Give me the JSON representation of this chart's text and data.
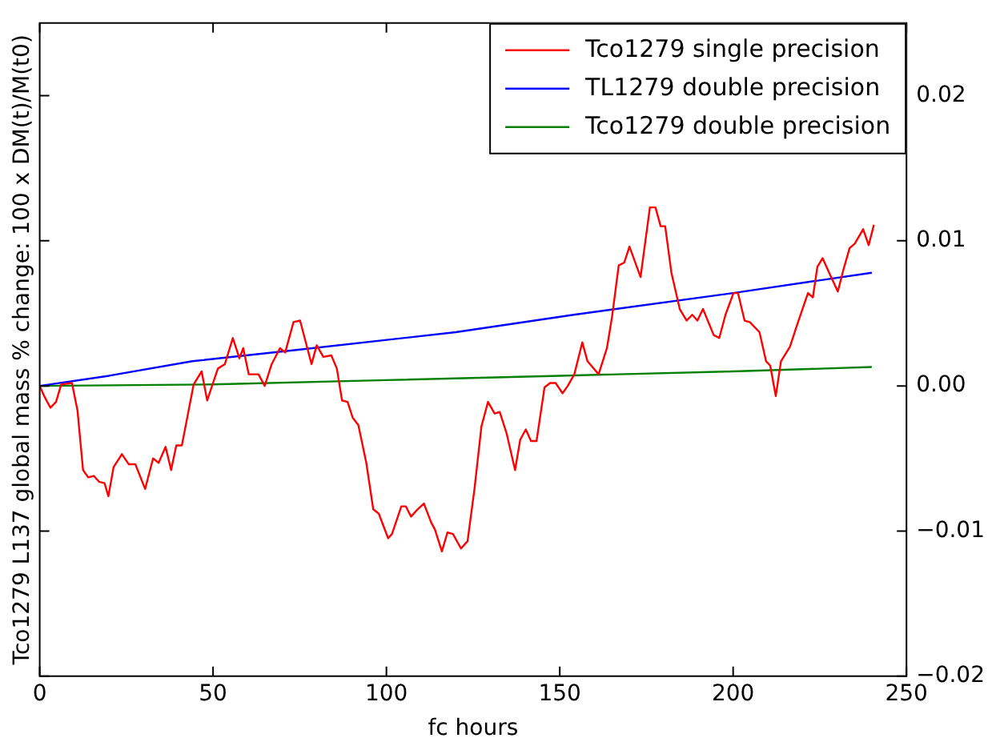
{
  "chart_data": {
    "type": "line",
    "xlabel": "fc hours",
    "ylabel": "Tco1279 L137 global mass % change: 100 x DM(t)/M(t0)",
    "xlim": [
      0,
      250
    ],
    "xticks": [
      0,
      50,
      100,
      150,
      200,
      250
    ],
    "ylim": [
      -0.02,
      0.025
    ],
    "yticks": [
      {
        "value": -0.02,
        "label": "−0.02"
      },
      {
        "value": -0.01,
        "label": "−0.01"
      },
      {
        "value": 0,
        "label": "0.00"
      },
      {
        "value": 0.01,
        "label": "0.01"
      },
      {
        "value": 0.02,
        "label": "0.02"
      }
    ],
    "grid": false,
    "legend": "top right",
    "marker": "none",
    "line_style": "solid",
    "series": [
      {
        "name": "Tco1279 single precision",
        "color": "#ff0000",
        "x": [
          0,
          1.5,
          3.1,
          4.7,
          6.2,
          9.3,
          10.9,
          12.5,
          14,
          15.6,
          17.1,
          18.7,
          19.8,
          21.3,
          23.7,
          25.7,
          27.6,
          30.4,
          32.7,
          34.3,
          36.3,
          37.9,
          39.4,
          41,
          44.4,
          46.7,
          48.3,
          51.4,
          53.4,
          55.7,
          57.6,
          58.7,
          60.3,
          63.1,
          64.9,
          66.9,
          69.3,
          70.8,
          73.2,
          75.1,
          78.4,
          79.9,
          81.8,
          84.1,
          85.7,
          87.2,
          88.8,
          90.3,
          91.9,
          94.2,
          96.2,
          97.8,
          100.5,
          101.6,
          104.3,
          105.6,
          107.1,
          109,
          110.8,
          112.9,
          114,
          116,
          117.6,
          119.2,
          121.5,
          123.4,
          125.4,
          127.4,
          129.3,
          131.2,
          132.7,
          134.7,
          137.1,
          138.6,
          140.2,
          141.7,
          143.3,
          145.6,
          147.2,
          148.8,
          150.8,
          152.3,
          154.2,
          156.5,
          158,
          161.2,
          163.6,
          165.1,
          167,
          168.6,
          170.1,
          173.3,
          176,
          177.6,
          179.1,
          180.4,
          182.2,
          184.6,
          186.6,
          188.2,
          189.7,
          191.3,
          194.4,
          196,
          197.8,
          200.1,
          201.4,
          203.3,
          204.8,
          207.6,
          209.5,
          210.7,
          212.3,
          213.8,
          216.4,
          218.3,
          220.3,
          221.6,
          223,
          224.3,
          225.8,
          227.7,
          230.2,
          231.8,
          233.6,
          235.1,
          237.5,
          239.1,
          240.6
        ],
        "values": [
          0,
          -0.0008,
          -0.0015,
          -0.0011,
          0.0001,
          0.0002,
          -0.0017,
          -0.0058,
          -0.0063,
          -0.0062,
          -0.0066,
          -0.0067,
          -0.0076,
          -0.0056,
          -0.0047,
          -0.0054,
          -0.0054,
          -0.0071,
          -0.005,
          -0.0053,
          -0.0042,
          -0.0058,
          -0.0041,
          -0.0041,
          0.0001,
          0.001,
          -0.001,
          0.0012,
          0.0015,
          0.0033,
          0.0019,
          0.0026,
          0.0008,
          0.0008,
          0,
          0.0015,
          0.0026,
          0.0023,
          0.0044,
          0.0045,
          0.0015,
          0.0028,
          0.002,
          0.0021,
          0.0012,
          -0.001,
          -0.0011,
          -0.0022,
          -0.0027,
          -0.0053,
          -0.0085,
          -0.0088,
          -0.0105,
          -0.0102,
          -0.0083,
          -0.0083,
          -0.009,
          -0.0085,
          -0.0081,
          -0.0094,
          -0.0099,
          -0.0114,
          -0.0101,
          -0.0102,
          -0.0112,
          -0.0107,
          -0.0071,
          -0.0028,
          -0.0011,
          -0.0019,
          -0.0018,
          -0.0033,
          -0.0058,
          -0.0037,
          -0.003,
          -0.0038,
          -0.0038,
          -0.0001,
          0.0002,
          0.0002,
          -0.0005,
          0,
          0.0008,
          0.003,
          0.0017,
          0.0008,
          0.0026,
          0.0048,
          0.0083,
          0.0085,
          0.0096,
          0.0075,
          0.0123,
          0.0123,
          0.011,
          0.011,
          0.0078,
          0.0053,
          0.0045,
          0.0049,
          0.0045,
          0.0053,
          0.0035,
          0.0033,
          0.0049,
          0.0064,
          0.0064,
          0.0045,
          0.0044,
          0.0037,
          0.0017,
          0.0014,
          -0.0007,
          0.0017,
          0.0027,
          0.0041,
          0.0055,
          0.0064,
          0.0061,
          0.0082,
          0.0088,
          0.0078,
          0.0065,
          0.008,
          0.0095,
          0.0098,
          0.0108,
          0.0097,
          0.0111
        ]
      },
      {
        "name": "TL1279 double precision",
        "color": "#0000ff",
        "x": [
          0,
          20,
          44,
          75,
          120,
          154,
          200,
          240
        ],
        "values": [
          0,
          0.0007,
          0.0017,
          0.0025,
          0.0037,
          0.0049,
          0.0064,
          0.0078
        ]
      },
      {
        "name": "Tco1279 double precision",
        "color": "#008000",
        "x": [
          0,
          50,
          100,
          150,
          200,
          240
        ],
        "values": [
          0,
          0.0001,
          0.0004,
          0.0007,
          0.001,
          0.0013
        ]
      }
    ]
  }
}
